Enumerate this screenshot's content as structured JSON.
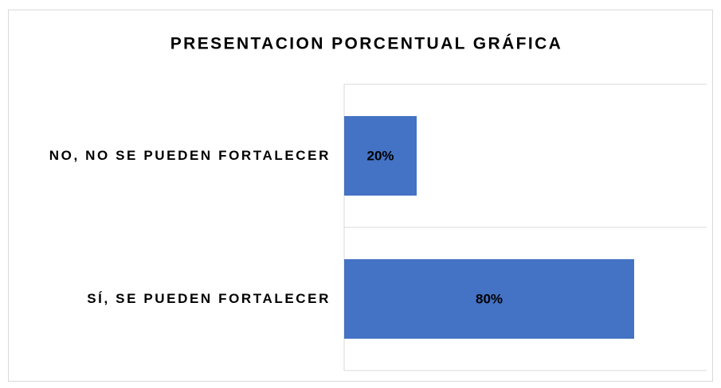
{
  "chart_data": {
    "type": "bar",
    "orientation": "horizontal",
    "title": "PRESENTACION PORCENTUAL GRÁFICA",
    "categories": [
      "NO, NO SE PUEDEN FORTALECER",
      "SÍ, SE PUEDEN FORTALECER"
    ],
    "values": [
      20,
      80
    ],
    "value_labels": [
      "20%",
      "80%"
    ],
    "color": "#4472c4",
    "xlim": [
      0,
      100
    ],
    "grid": true
  }
}
